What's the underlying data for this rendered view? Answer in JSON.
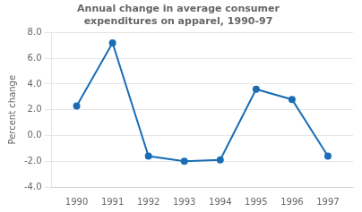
{
  "chart_data": {
    "type": "line",
    "title": "Annual change in average consumer\nexpenditures on apparel, 1990-97",
    "ylabel": "Percent change",
    "x": [
      1990,
      1991,
      1992,
      1993,
      1994,
      1995,
      1996,
      1997
    ],
    "values": [
      2.3,
      7.2,
      -1.6,
      -2.0,
      -1.9,
      3.6,
      2.8,
      -1.6
    ],
    "color": "#1a6db5",
    "marker": "circle",
    "xlim": [
      1989.3,
      1997.7
    ],
    "xticks": [
      1990,
      1991,
      1992,
      1993,
      1994,
      1995,
      1996,
      1997
    ],
    "ylim": [
      -4,
      8
    ],
    "yticks": [
      {
        "value": -4,
        "label": "-4.0"
      },
      {
        "value": -2,
        "label": "-2.0"
      },
      {
        "value": 0,
        "label": "0.0"
      },
      {
        "value": 2,
        "label": "2.0"
      },
      {
        "value": 4,
        "label": "4.0"
      },
      {
        "value": 6,
        "label": "6.0"
      },
      {
        "value": 8,
        "label": "8.0"
      }
    ],
    "grid": "y"
  }
}
